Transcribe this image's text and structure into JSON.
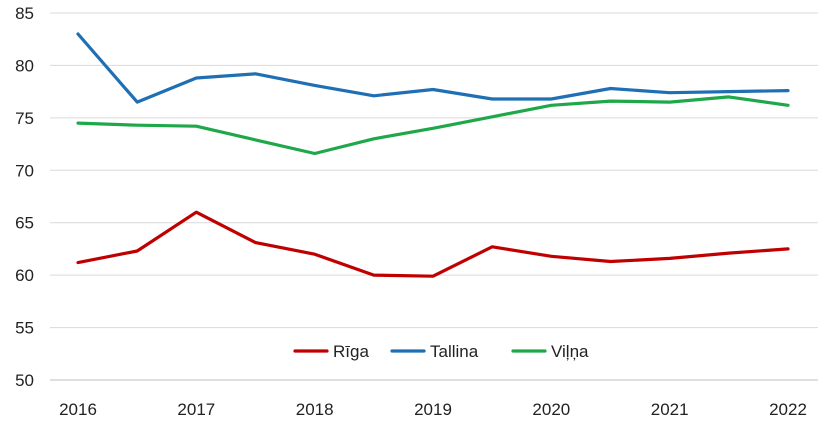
{
  "chart_data": {
    "type": "line",
    "title": "",
    "xlabel": "",
    "ylabel": "",
    "x_tick_labels": [
      "2016",
      "2017",
      "2018",
      "2019",
      "2020",
      "2021",
      "2022"
    ],
    "x": [
      2016.0,
      2016.5,
      2017.0,
      2017.5,
      2018.0,
      2018.5,
      2019.0,
      2019.5,
      2020.0,
      2020.5,
      2021.0,
      2021.5,
      2022.0
    ],
    "ylim": [
      50,
      85
    ],
    "y_ticks": [
      50,
      55,
      60,
      65,
      70,
      75,
      80,
      85
    ],
    "grid": true,
    "legend_position": "bottom-center",
    "series": [
      {
        "name": "Rīga",
        "color": "#c00000",
        "values": [
          61.2,
          62.3,
          66.0,
          63.1,
          62.0,
          60.0,
          59.9,
          62.7,
          61.8,
          61.3,
          61.6,
          62.1,
          62.5
        ]
      },
      {
        "name": "Tallina",
        "color": "#1f6fb4",
        "values": [
          83.0,
          76.5,
          78.8,
          79.2,
          78.1,
          77.1,
          77.7,
          76.8,
          76.8,
          77.8,
          77.4,
          77.5,
          77.6
        ]
      },
      {
        "name": "Viļņa",
        "color": "#1fa84a",
        "values": [
          74.5,
          74.3,
          74.2,
          72.9,
          71.6,
          73.0,
          74.0,
          75.1,
          76.2,
          76.6,
          76.5,
          77.0,
          76.2
        ]
      }
    ]
  }
}
